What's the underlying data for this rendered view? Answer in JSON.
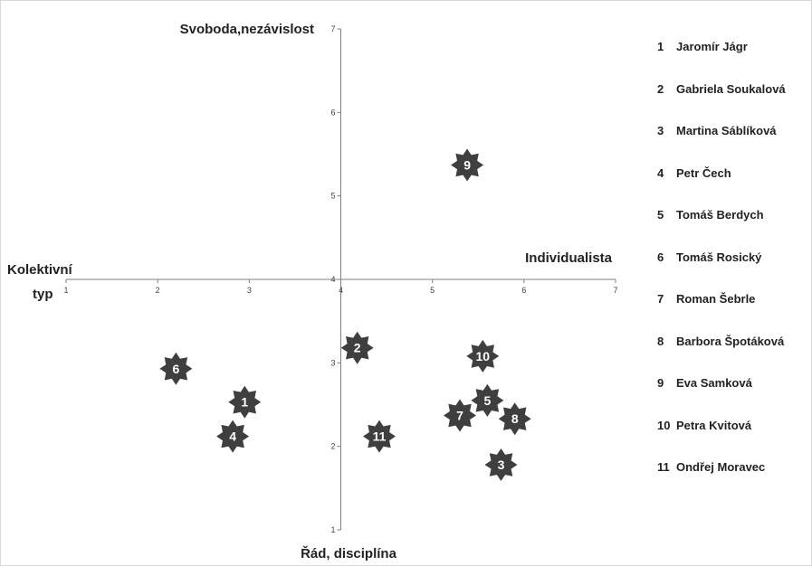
{
  "chart_data": {
    "type": "scatter",
    "title": "",
    "axis_titles": {
      "top": "Svoboda,nezávislost",
      "bottom": "Řád, disciplína",
      "left_line1": "Kolektivní",
      "left_line2": "typ",
      "right": "Individualista"
    },
    "xlim": [
      1,
      7
    ],
    "ylim": [
      1,
      7
    ],
    "x_ticks": [
      "1",
      "2",
      "3",
      "4",
      "5",
      "6",
      "7"
    ],
    "y_ticks": [
      "1",
      "2",
      "3",
      "4",
      "5",
      "6",
      "7"
    ],
    "axes_cross_at": {
      "x": 4,
      "y": 4
    },
    "grid": false,
    "legend_position": "right",
    "marker": "eight-point-star",
    "marker_color": "#3f3f3f",
    "points": [
      {
        "id": "1",
        "x": 2.95,
        "y": 2.53
      },
      {
        "id": "2",
        "x": 4.18,
        "y": 3.18
      },
      {
        "id": "3",
        "x": 5.75,
        "y": 1.78
      },
      {
        "id": "4",
        "x": 2.82,
        "y": 2.12
      },
      {
        "id": "5",
        "x": 5.6,
        "y": 2.55
      },
      {
        "id": "6",
        "x": 2.2,
        "y": 2.93
      },
      {
        "id": "7",
        "x": 5.3,
        "y": 2.37
      },
      {
        "id": "8",
        "x": 5.9,
        "y": 2.33
      },
      {
        "id": "9",
        "x": 5.38,
        "y": 5.37
      },
      {
        "id": "10",
        "x": 5.55,
        "y": 3.08
      },
      {
        "id": "11",
        "x": 4.42,
        "y": 2.12
      }
    ]
  },
  "legend": [
    {
      "num": "1",
      "name": "Jaromír Jágr"
    },
    {
      "num": "2",
      "name": "Gabriela Soukalová"
    },
    {
      "num": "3",
      "name": "Martina Sáblíková"
    },
    {
      "num": "4",
      "name": "Petr Čech"
    },
    {
      "num": "5",
      "name": "Tomáš Berdych"
    },
    {
      "num": "6",
      "name": "Tomáš Rosický"
    },
    {
      "num": "7",
      "name": "Roman Šebrle"
    },
    {
      "num": "8",
      "name": "Barbora Špotáková"
    },
    {
      "num": "9",
      "name": "Eva Samková"
    },
    {
      "num": "10",
      "name": "Petra Kvitová"
    },
    {
      "num": "11",
      "name": "Ondřej Moravec"
    }
  ]
}
